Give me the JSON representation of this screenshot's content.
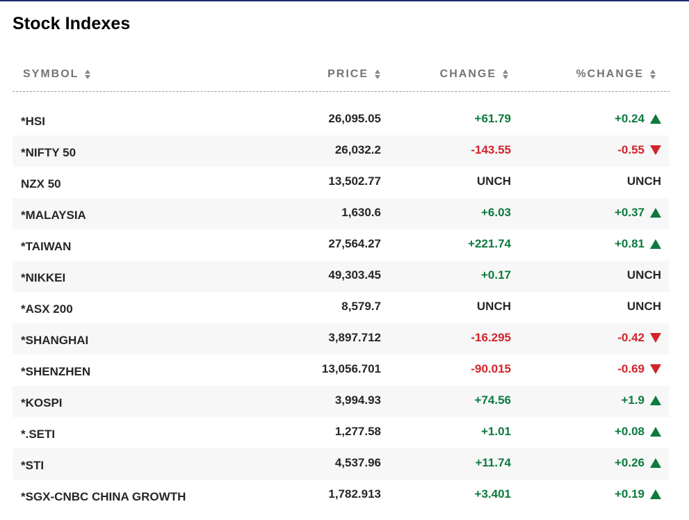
{
  "title": "Stock Indexes",
  "colors": {
    "positive": "#0d7a3e",
    "negative": "#d1232a",
    "header_text": "#747474",
    "top_rule": "#1b2a6b"
  },
  "columns": {
    "symbol": "SYMBOL",
    "price": "PRICE",
    "change": "CHANGE",
    "pct_change": "%CHANGE"
  },
  "rows": [
    {
      "symbol": "*HSI",
      "price": "26,095.05",
      "change": "+61.79",
      "pct_change": "+0.24",
      "direction": "up"
    },
    {
      "symbol": "*NIFTY 50",
      "price": "26,032.2",
      "change": "-143.55",
      "pct_change": "-0.55",
      "direction": "down"
    },
    {
      "symbol": "NZX 50",
      "price": "13,502.77",
      "change": "UNCH",
      "pct_change": "UNCH",
      "direction": "none"
    },
    {
      "symbol": "*MALAYSIA",
      "price": "1,630.6",
      "change": "+6.03",
      "pct_change": "+0.37",
      "direction": "up"
    },
    {
      "symbol": "*TAIWAN",
      "price": "27,564.27",
      "change": "+221.74",
      "pct_change": "+0.81",
      "direction": "up"
    },
    {
      "symbol": "*NIKKEI",
      "price": "49,303.45",
      "change": "+0.17",
      "pct_change": "UNCH",
      "direction": "none"
    },
    {
      "symbol": "*ASX 200",
      "price": "8,579.7",
      "change": "UNCH",
      "pct_change": "UNCH",
      "direction": "none"
    },
    {
      "symbol": "*SHANGHAI",
      "price": "3,897.712",
      "change": "-16.295",
      "pct_change": "-0.42",
      "direction": "down"
    },
    {
      "symbol": "*SHENZHEN",
      "price": "13,056.701",
      "change": "-90.015",
      "pct_change": "-0.69",
      "direction": "down"
    },
    {
      "symbol": "*KOSPI",
      "price": "3,994.93",
      "change": "+74.56",
      "pct_change": "+1.9",
      "direction": "up"
    },
    {
      "symbol": "*.SETI",
      "price": "1,277.58",
      "change": "+1.01",
      "pct_change": "+0.08",
      "direction": "up"
    },
    {
      "symbol": "*STI",
      "price": "4,537.96",
      "change": "+11.74",
      "pct_change": "+0.26",
      "direction": "up"
    },
    {
      "symbol": "*SGX-CNBC CHINA GROWTH",
      "price": "1,782.913",
      "change": "+3.401",
      "pct_change": "+0.19",
      "direction": "up"
    }
  ]
}
